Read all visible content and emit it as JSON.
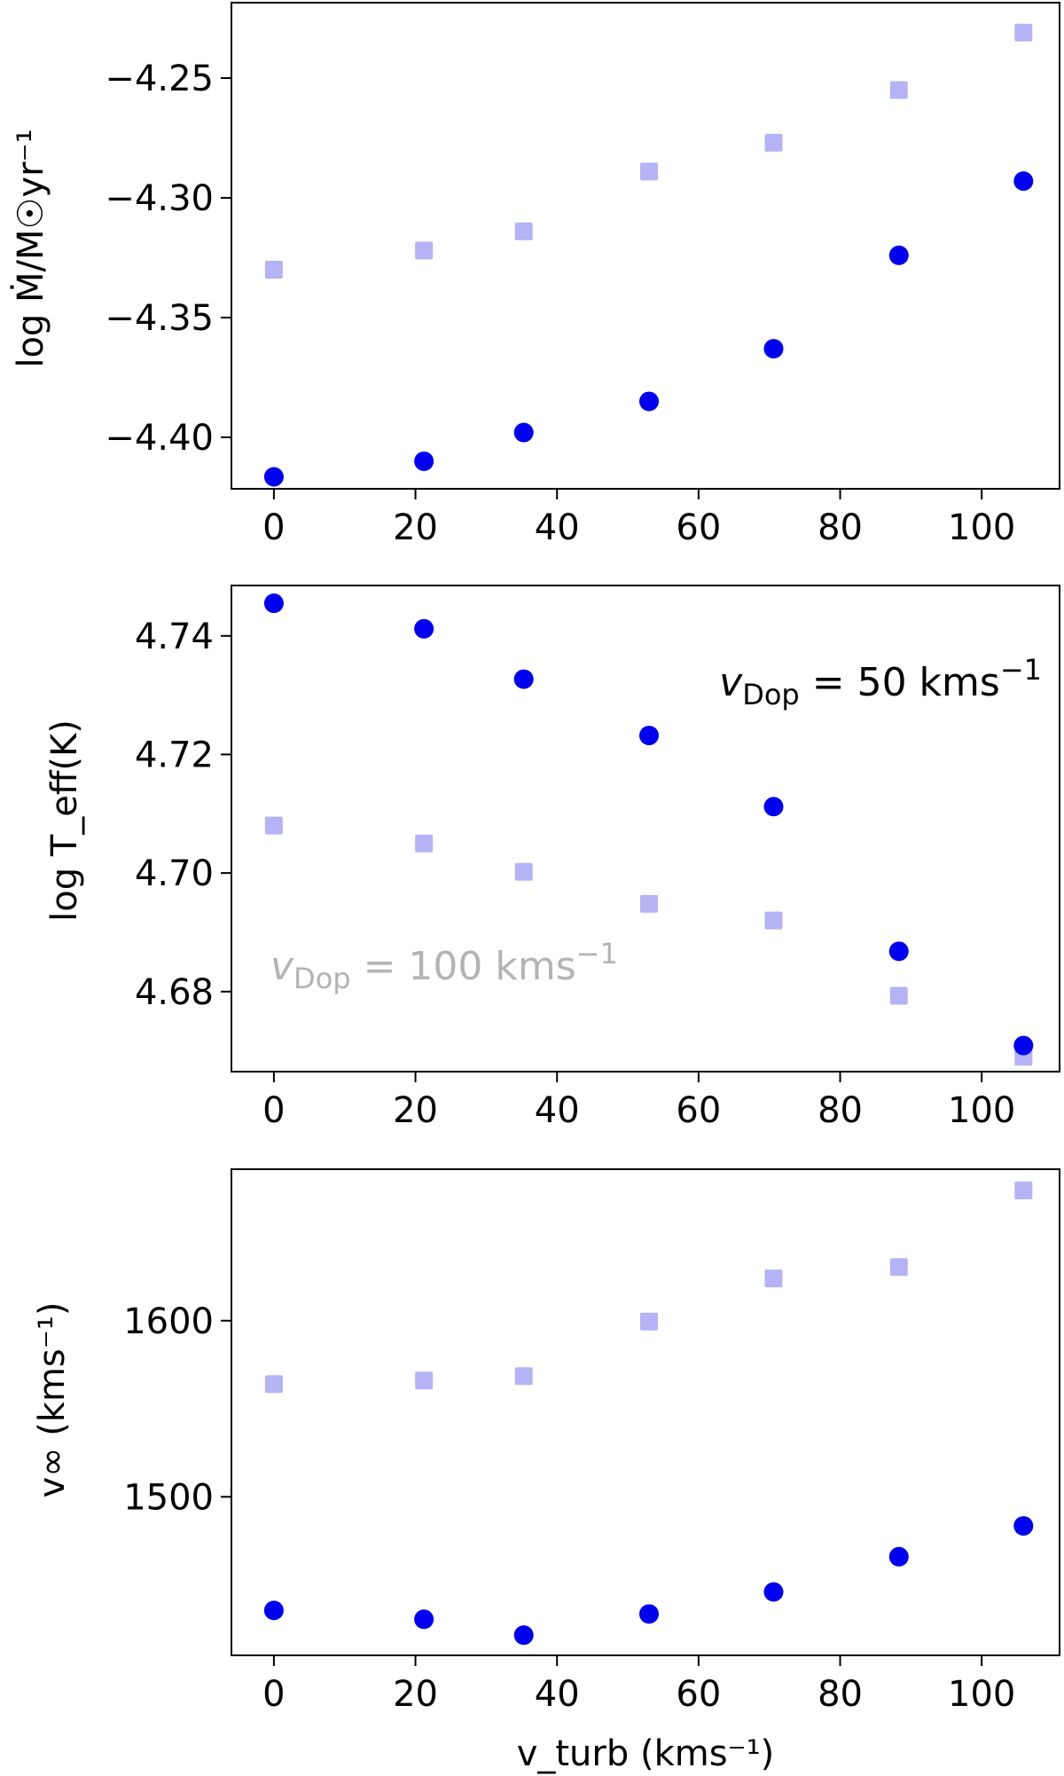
{
  "chart_data": [
    {
      "type": "scatter",
      "ylabel": "log Ṁ/M☉yr⁻¹",
      "xlim": [
        -6,
        111
      ],
      "ylim": [
        -4.4215,
        -4.2185
      ],
      "xticks": [
        "0",
        "20",
        "40",
        "60",
        "80",
        "100"
      ],
      "xtick_values": [
        0,
        20,
        40,
        60,
        80,
        100
      ],
      "yticks": [
        "−4.25",
        "−4.30",
        "−4.35",
        "−4.40"
      ],
      "ytick_values": [
        -4.25,
        -4.3,
        -4.35,
        -4.4
      ],
      "series": [
        {
          "marker": "square",
          "color": "#b3b3f5",
          "x": [
            0,
            21.2,
            35.3,
            53,
            70.6,
            88.3,
            105.9
          ],
          "y": [
            -4.33,
            -4.322,
            -4.314,
            -4.289,
            -4.277,
            -4.255,
            -4.231
          ]
        },
        {
          "marker": "circle",
          "color": "#0000f0",
          "x": [
            0,
            21.2,
            35.3,
            53,
            70.6,
            88.3,
            105.9
          ],
          "y": [
            -4.4165,
            -4.41,
            -4.398,
            -4.385,
            -4.363,
            -4.324,
            -4.293
          ]
        }
      ]
    },
    {
      "type": "scatter",
      "ylabel": "log T_eff(K)",
      "xlim": [
        -6,
        111
      ],
      "ylim": [
        4.6665,
        4.7485
      ],
      "xticks": [
        "0",
        "20",
        "40",
        "60",
        "80",
        "100"
      ],
      "xtick_values": [
        0,
        20,
        40,
        60,
        80,
        100
      ],
      "yticks": [
        "4.74",
        "4.72",
        "4.70",
        "4.68"
      ],
      "ytick_values": [
        4.74,
        4.72,
        4.7,
        4.68
      ],
      "annotations": [
        {
          "text_main": "v",
          "text_sub": "Dop",
          "text_rest": " = 50 kms",
          "text_sup": "−1",
          "color": "#000000"
        },
        {
          "text_main": "v",
          "text_sub": "Dop",
          "text_rest": " = 100 kms",
          "text_sup": "−1",
          "color": "#b3b3b3"
        }
      ],
      "series": [
        {
          "marker": "square",
          "color": "#b3b3f5",
          "x": [
            0,
            21.2,
            35.3,
            53,
            70.6,
            88.3,
            105.9
          ],
          "y": [
            4.708,
            4.705,
            4.7002,
            4.6948,
            4.692,
            4.6793,
            4.669
          ]
        },
        {
          "marker": "circle",
          "color": "#0000f0",
          "x": [
            0,
            21.2,
            35.3,
            53,
            70.6,
            88.3,
            105.9
          ],
          "y": [
            4.7455,
            4.7412,
            4.7327,
            4.7232,
            4.7112,
            4.6868,
            4.6709
          ]
        }
      ]
    },
    {
      "type": "scatter",
      "ylabel": "v∞ (kms⁻¹)",
      "xlabel": "v_turb (kms⁻¹)",
      "xlim": [
        -6,
        111
      ],
      "ylim": [
        1410,
        1686
      ],
      "xticks": [
        "0",
        "20",
        "40",
        "60",
        "80",
        "100"
      ],
      "xtick_values": [
        0,
        20,
        40,
        60,
        80,
        100
      ],
      "yticks": [
        "1600",
        "1500"
      ],
      "ytick_values": [
        1600,
        1500
      ],
      "series": [
        {
          "marker": "square",
          "color": "#b3b3f5",
          "x": [
            0,
            21.2,
            35.3,
            53,
            70.6,
            88.3,
            105.9
          ],
          "y": [
            1564,
            1566,
            1568.5,
            1599.5,
            1624,
            1630.5,
            1674
          ]
        },
        {
          "marker": "circle",
          "color": "#0000f0",
          "x": [
            0,
            21.2,
            35.3,
            53,
            70.6,
            88.3,
            105.9
          ],
          "y": [
            1435.5,
            1430.5,
            1421.5,
            1433.5,
            1446,
            1466,
            1483.5
          ]
        }
      ]
    }
  ]
}
